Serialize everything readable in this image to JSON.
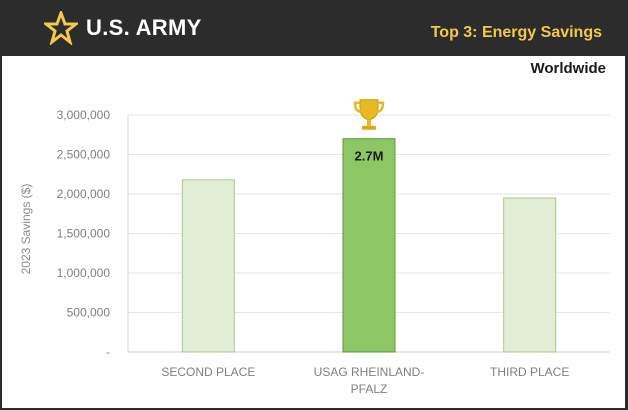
{
  "header": {
    "brand": "U.S. ARMY",
    "title": "Top 3: Energy Savings",
    "subtitle": "Worldwide",
    "colors": {
      "header_bg": "#2c2c2c",
      "title": "#f2c94c",
      "star": "#f2c94c"
    }
  },
  "icons": {
    "logo": "star-icon",
    "winner": "trophy-icon"
  },
  "chart_data": {
    "type": "bar",
    "categories": [
      {
        "lines": [
          "SECOND PLACE"
        ]
      },
      {
        "lines": [
          "USAG RHEINLAND-",
          "PFALZ"
        ]
      },
      {
        "lines": [
          "THIRD PLACE"
        ]
      }
    ],
    "values": [
      2180000,
      2700000,
      1950000
    ],
    "highlight_index": 1,
    "data_labels": [
      "",
      "2.7M",
      ""
    ],
    "ylabel": "2023 Savings ($)",
    "ylim": [
      0,
      3000000
    ],
    "yticks": [
      0,
      500000,
      1000000,
      1500000,
      2000000,
      2500000,
      3000000
    ],
    "ytick_labels": [
      "-",
      "500,000",
      "1,000,000",
      "1,500,000",
      "2,000,000",
      "2,500,000",
      "3,000,000"
    ],
    "grid": true,
    "colors": {
      "bar": "#e3ecd5",
      "bar_border": "#a9c98b",
      "highlight": "#8dc765",
      "highlight_border": "#5a9a3a",
      "grid": "#e6e6e6"
    }
  }
}
